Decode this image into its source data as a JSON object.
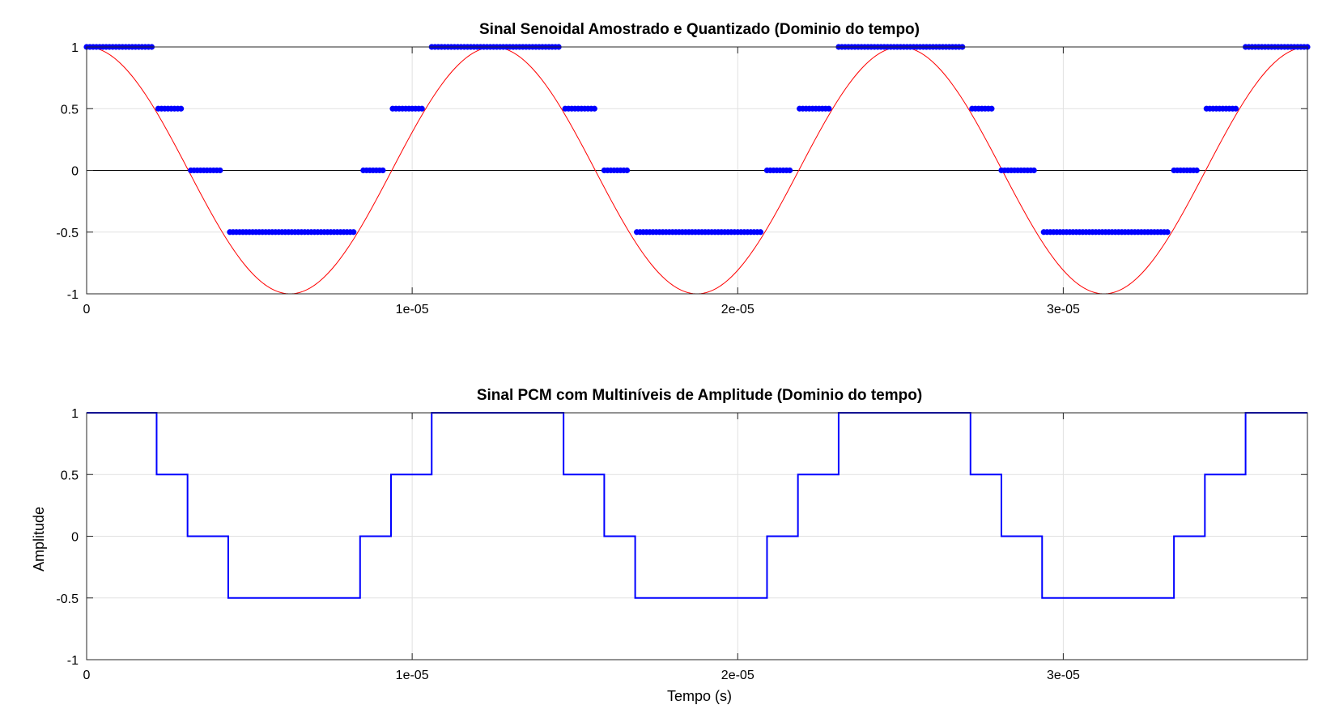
{
  "chart_data": [
    {
      "type": "scatter",
      "title": "Sinal Senoidal Amostrado e Quantizado (Dominio do tempo)",
      "xlabel": "",
      "ylabel": "",
      "xlim": [
        0,
        3.75e-05
      ],
      "ylim": [
        -1,
        1
      ],
      "xticks": [
        0,
        1e-05,
        2e-05,
        3e-05
      ],
      "xtick_labels": [
        "0",
        "1e-05",
        "2e-05",
        "3e-05"
      ],
      "yticks": [
        -1,
        -0.5,
        0,
        0.5,
        1
      ],
      "ytick_labels": [
        "-1",
        "-0.5",
        "0",
        "0.5",
        "1"
      ],
      "grid": true,
      "zero_line": true,
      "colors": {
        "curve": "#ff0000",
        "samples": "#0000ff"
      },
      "curve": {
        "kind": "cosine",
        "amplitude": 1,
        "frequency_hz": 80000
      },
      "samples": {
        "levels": [
          1,
          0.5,
          0,
          -0.5
        ],
        "runs": [
          {
            "level": 1,
            "t": [
              0,
              2e-06
            ]
          },
          {
            "level": 0.5,
            "t": [
              2.2e-06,
              2.9e-06
            ]
          },
          {
            "level": 0,
            "t": [
              3.2e-06,
              4.1e-06
            ]
          },
          {
            "level": -0.5,
            "t": [
              4.4e-06,
              8.2e-06
            ]
          },
          {
            "level": 0,
            "t": [
              8.5e-06,
              9.1e-06
            ]
          },
          {
            "level": 0.5,
            "t": [
              9.4e-06,
              1.03e-05
            ]
          },
          {
            "level": 1,
            "t": [
              1.06e-05,
              1.45e-05
            ]
          },
          {
            "level": 0.5,
            "t": [
              1.47e-05,
              1.56e-05
            ]
          },
          {
            "level": 0,
            "t": [
              1.59e-05,
              1.66e-05
            ]
          },
          {
            "level": -0.5,
            "t": [
              1.69e-05,
              2.07e-05
            ]
          },
          {
            "level": 0,
            "t": [
              2.09e-05,
              2.16e-05
            ]
          },
          {
            "level": 0.5,
            "t": [
              2.19e-05,
              2.28e-05
            ]
          },
          {
            "level": 1,
            "t": [
              2.31e-05,
              2.69e-05
            ]
          },
          {
            "level": 0.5,
            "t": [
              2.72e-05,
              2.78e-05
            ]
          },
          {
            "level": 0,
            "t": [
              2.81e-05,
              2.91e-05
            ]
          },
          {
            "level": -0.5,
            "t": [
              2.94e-05,
              3.32e-05
            ]
          },
          {
            "level": 0,
            "t": [
              3.34e-05,
              3.41e-05
            ]
          },
          {
            "level": 0.5,
            "t": [
              3.44e-05,
              3.53e-05
            ]
          },
          {
            "level": 1,
            "t": [
              3.56e-05,
              3.75e-05
            ]
          }
        ]
      }
    },
    {
      "type": "line",
      "title": "Sinal PCM com Multiníveis de Amplitude (Dominio do tempo)",
      "xlabel": "Tempo (s)",
      "ylabel": "Amplitude",
      "xlim": [
        0,
        3.75e-05
      ],
      "ylim": [
        -1,
        1
      ],
      "xticks": [
        0,
        1e-05,
        2e-05,
        3e-05
      ],
      "xtick_labels": [
        "0",
        "1e-05",
        "2e-05",
        "3e-05"
      ],
      "yticks": [
        -1,
        -0.5,
        0,
        0.5,
        1
      ],
      "ytick_labels": [
        "-1",
        "-0.5",
        "0",
        "0.5",
        "1"
      ],
      "grid": true,
      "colors": {
        "line": "#0000ff"
      },
      "steps": [
        {
          "x_start": 0,
          "x_end": 2.15e-06,
          "y": 1
        },
        {
          "x_start": 2.15e-06,
          "x_end": 3.1e-06,
          "y": 0.5
        },
        {
          "x_start": 3.1e-06,
          "x_end": 4.35e-06,
          "y": 0
        },
        {
          "x_start": 4.35e-06,
          "x_end": 8.4e-06,
          "y": -0.5
        },
        {
          "x_start": 8.4e-06,
          "x_end": 9.35e-06,
          "y": 0
        },
        {
          "x_start": 9.35e-06,
          "x_end": 1.06e-05,
          "y": 0.5
        },
        {
          "x_start": 1.06e-05,
          "x_end": 1.465e-05,
          "y": 1
        },
        {
          "x_start": 1.465e-05,
          "x_end": 1.59e-05,
          "y": 0.5
        },
        {
          "x_start": 1.59e-05,
          "x_end": 1.685e-05,
          "y": 0
        },
        {
          "x_start": 1.685e-05,
          "x_end": 2.09e-05,
          "y": -0.5
        },
        {
          "x_start": 2.09e-05,
          "x_end": 2.185e-05,
          "y": 0
        },
        {
          "x_start": 2.185e-05,
          "x_end": 2.31e-05,
          "y": 0.5
        },
        {
          "x_start": 2.31e-05,
          "x_end": 2.715e-05,
          "y": 1
        },
        {
          "x_start": 2.715e-05,
          "x_end": 2.81e-05,
          "y": 0.5
        },
        {
          "x_start": 2.81e-05,
          "x_end": 2.935e-05,
          "y": 0
        },
        {
          "x_start": 2.935e-05,
          "x_end": 3.34e-05,
          "y": -0.5
        },
        {
          "x_start": 3.34e-05,
          "x_end": 3.435e-05,
          "y": 0
        },
        {
          "x_start": 3.435e-05,
          "x_end": 3.56e-05,
          "y": 0.5
        },
        {
          "x_start": 3.56e-05,
          "x_end": 3.75e-05,
          "y": 1
        }
      ]
    }
  ]
}
